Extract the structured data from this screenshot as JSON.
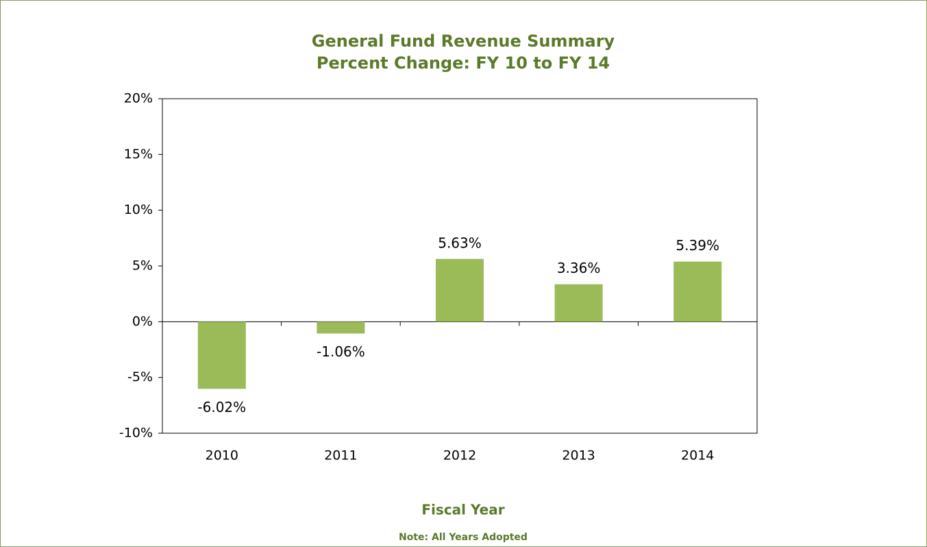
{
  "chart_data": {
    "type": "bar",
    "title": "General Fund Revenue Summary",
    "subtitle": "Percent Change: FY 10 to FY 14",
    "x_label": "Fiscal Year",
    "note": "Note: All Years Adopted",
    "categories": [
      "2010",
      "2011",
      "2012",
      "2013",
      "2014"
    ],
    "values": [
      -6.02,
      -1.06,
      5.63,
      3.36,
      5.39
    ],
    "value_labels": [
      "-6.02%",
      "-1.06%",
      "5.63%",
      "3.36%",
      "5.39%"
    ],
    "color": "#9bbb59",
    "ylim": [
      -10,
      20
    ],
    "yticks": [
      {
        "value": -10,
        "label": "-10%"
      },
      {
        "value": -5,
        "label": "-5%"
      },
      {
        "value": 0,
        "label": "0%"
      },
      {
        "value": 5,
        "label": "5%"
      },
      {
        "value": 10,
        "label": "10%"
      },
      {
        "value": 15,
        "label": "15%"
      },
      {
        "value": 20,
        "label": "20%"
      }
    ],
    "grid": false
  }
}
